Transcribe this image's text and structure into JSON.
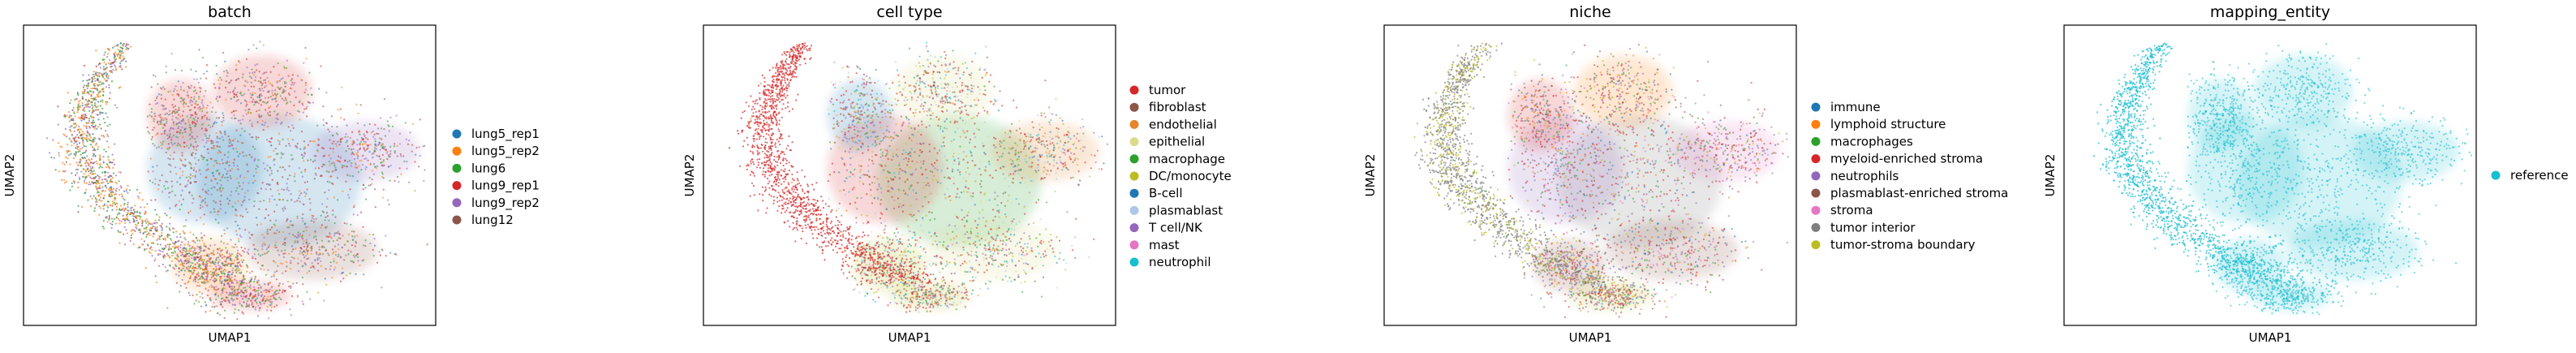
{
  "chart_data": [
    {
      "type": "scatter",
      "title": "batch",
      "xlabel": "UMAP1",
      "ylabel": "UMAP2",
      "grid": false,
      "legend_placement": "right-outside",
      "ticks": "none",
      "legend": [
        {
          "label": "lung5_rep1",
          "color": "#1f77b4"
        },
        {
          "label": "lung5_rep2",
          "color": "#ff7f0e"
        },
        {
          "label": "lung6",
          "color": "#2ca02c"
        },
        {
          "label": "lung9_rep1",
          "color": "#d62728"
        },
        {
          "label": "lung9_rep2",
          "color": "#9467bd"
        },
        {
          "label": "lung12",
          "color": "#8c564b"
        }
      ]
    },
    {
      "type": "scatter",
      "title": "cell type",
      "xlabel": "UMAP1",
      "ylabel": "UMAP2",
      "grid": false,
      "legend_placement": "right-outside",
      "ticks": "none",
      "legend": [
        {
          "label": "tumor",
          "color": "#d62728"
        },
        {
          "label": "fibroblast",
          "color": "#8c564b"
        },
        {
          "label": "endothelial",
          "color": "#e6862a"
        },
        {
          "label": "epithelial",
          "color": "#dbdb8d"
        },
        {
          "label": "macrophage",
          "color": "#2ca02c"
        },
        {
          "label": "DC/monocyte",
          "color": "#bcbd22"
        },
        {
          "label": "B-cell",
          "color": "#1f77b4"
        },
        {
          "label": "plasmablast",
          "color": "#aec7e8"
        },
        {
          "label": "T cell/NK",
          "color": "#9467bd"
        },
        {
          "label": "mast",
          "color": "#e377c2"
        },
        {
          "label": "neutrophil",
          "color": "#17becf"
        }
      ]
    },
    {
      "type": "scatter",
      "title": "niche",
      "xlabel": "UMAP1",
      "ylabel": "UMAP2",
      "grid": false,
      "legend_placement": "right-outside",
      "ticks": "none",
      "legend": [
        {
          "label": "immune",
          "color": "#1f77b4"
        },
        {
          "label": "lymphoid structure",
          "color": "#ff7f0e"
        },
        {
          "label": "macrophages",
          "color": "#2ca02c"
        },
        {
          "label": "myeloid-enriched stroma",
          "color": "#d62728"
        },
        {
          "label": "neutrophils",
          "color": "#9467bd"
        },
        {
          "label": "plasmablast-enriched stroma",
          "color": "#8c564b"
        },
        {
          "label": "stroma",
          "color": "#e377c2"
        },
        {
          "label": "tumor interior",
          "color": "#7f7f7f"
        },
        {
          "label": "tumor-stroma boundary",
          "color": "#bcbd22"
        }
      ]
    },
    {
      "type": "scatter",
      "title": "mapping_entity",
      "xlabel": "UMAP1",
      "ylabel": "UMAP2",
      "grid": false,
      "legend_placement": "right-outside",
      "ticks": "none",
      "legend": [
        {
          "label": "reference",
          "color": "#17becf"
        }
      ]
    }
  ]
}
